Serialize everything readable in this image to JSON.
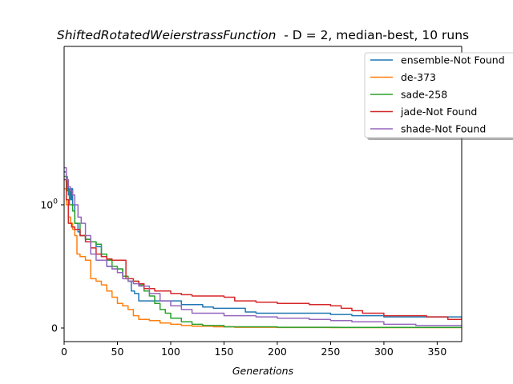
{
  "chart_data": {
    "type": "line",
    "title_function": "ShiftedRotatedWeierstrassFunction",
    "title_rest": "  - D = 2, median-best, 10 runs",
    "xlabel": "Generations",
    "ylabel": "",
    "xlim": [
      0,
      373
    ],
    "ylim": [
      0,
      2.0
    ],
    "yscale": "symlog",
    "grid": false,
    "legend_position": "top-right",
    "x_ticks": [
      0,
      50,
      100,
      150,
      200,
      250,
      300,
      350
    ],
    "x_tick_labels": [
      "0",
      "50",
      "100",
      "150",
      "200",
      "250",
      "300",
      "350"
    ],
    "y_ticks": [
      0,
      1
    ],
    "y_tick_labels": [
      "0",
      "10^0"
    ],
    "series": [
      {
        "name": "ensemble-Not Found",
        "color": "#1f77b4",
        "points": [
          [
            0,
            1.85
          ],
          [
            2,
            1.5
          ],
          [
            4,
            1.2
          ],
          [
            5,
            1.35
          ],
          [
            6,
            1.1
          ],
          [
            7,
            1.35
          ],
          [
            8,
            1.0
          ],
          [
            10,
            0.85
          ],
          [
            13,
            0.78
          ],
          [
            15,
            0.75
          ],
          [
            20,
            0.72
          ],
          [
            25,
            0.7
          ],
          [
            30,
            0.66
          ],
          [
            35,
            0.58
          ],
          [
            40,
            0.5
          ],
          [
            45,
            0.48
          ],
          [
            50,
            0.48
          ],
          [
            55,
            0.42
          ],
          [
            60,
            0.38
          ],
          [
            63,
            0.3
          ],
          [
            66,
            0.28
          ],
          [
            70,
            0.22
          ],
          [
            85,
            0.22
          ],
          [
            100,
            0.22
          ],
          [
            110,
            0.19
          ],
          [
            130,
            0.17
          ],
          [
            140,
            0.16
          ],
          [
            170,
            0.13
          ],
          [
            180,
            0.12
          ],
          [
            200,
            0.12
          ],
          [
            230,
            0.12
          ],
          [
            250,
            0.11
          ],
          [
            270,
            0.1
          ],
          [
            300,
            0.09
          ],
          [
            350,
            0.09
          ],
          [
            373,
            0.08
          ]
        ]
      },
      {
        "name": "de-373",
        "color": "#ff7f0e",
        "points": [
          [
            0,
            1.35
          ],
          [
            2,
            1.0
          ],
          [
            4,
            0.9
          ],
          [
            6,
            0.85
          ],
          [
            8,
            0.8
          ],
          [
            10,
            0.75
          ],
          [
            12,
            0.6
          ],
          [
            15,
            0.58
          ],
          [
            20,
            0.55
          ],
          [
            25,
            0.4
          ],
          [
            30,
            0.38
          ],
          [
            35,
            0.35
          ],
          [
            40,
            0.3
          ],
          [
            45,
            0.25
          ],
          [
            50,
            0.2
          ],
          [
            55,
            0.18
          ],
          [
            60,
            0.15
          ],
          [
            65,
            0.1
          ],
          [
            70,
            0.07
          ],
          [
            80,
            0.06
          ],
          [
            90,
            0.04
          ],
          [
            100,
            0.03
          ],
          [
            110,
            0.02
          ],
          [
            120,
            0.015
          ],
          [
            140,
            0.01
          ],
          [
            160,
            0.006
          ],
          [
            200,
            0.004
          ],
          [
            250,
            0.003
          ],
          [
            373,
            0.003
          ]
        ]
      },
      {
        "name": "sade-258",
        "color": "#2ca02c",
        "points": [
          [
            0,
            1.7
          ],
          [
            3,
            1.3
          ],
          [
            5,
            1.0
          ],
          [
            8,
            0.95
          ],
          [
            10,
            0.85
          ],
          [
            15,
            0.75
          ],
          [
            20,
            0.72
          ],
          [
            25,
            0.7
          ],
          [
            30,
            0.68
          ],
          [
            35,
            0.6
          ],
          [
            40,
            0.55
          ],
          [
            45,
            0.5
          ],
          [
            50,
            0.48
          ],
          [
            55,
            0.42
          ],
          [
            60,
            0.38
          ],
          [
            70,
            0.35
          ],
          [
            75,
            0.3
          ],
          [
            80,
            0.26
          ],
          [
            85,
            0.2
          ],
          [
            90,
            0.15
          ],
          [
            95,
            0.12
          ],
          [
            100,
            0.08
          ],
          [
            110,
            0.05
          ],
          [
            120,
            0.03
          ],
          [
            130,
            0.02
          ],
          [
            150,
            0.01
          ],
          [
            200,
            0.006
          ],
          [
            258,
            0.005
          ],
          [
            373,
            0.005
          ]
        ]
      },
      {
        "name": "jade-Not Found",
        "color": "#d62728",
        "points": [
          [
            0,
            1.6
          ],
          [
            2,
            1.1
          ],
          [
            4,
            0.85
          ],
          [
            7,
            0.82
          ],
          [
            10,
            0.8
          ],
          [
            15,
            0.75
          ],
          [
            20,
            0.7
          ],
          [
            25,
            0.65
          ],
          [
            30,
            0.6
          ],
          [
            35,
            0.58
          ],
          [
            40,
            0.56
          ],
          [
            45,
            0.55
          ],
          [
            50,
            0.55
          ],
          [
            57,
            0.55
          ],
          [
            58,
            0.4
          ],
          [
            65,
            0.38
          ],
          [
            70,
            0.36
          ],
          [
            75,
            0.32
          ],
          [
            85,
            0.3
          ],
          [
            100,
            0.28
          ],
          [
            110,
            0.27
          ],
          [
            120,
            0.26
          ],
          [
            150,
            0.25
          ],
          [
            160,
            0.22
          ],
          [
            180,
            0.21
          ],
          [
            200,
            0.2
          ],
          [
            230,
            0.19
          ],
          [
            250,
            0.18
          ],
          [
            260,
            0.16
          ],
          [
            270,
            0.14
          ],
          [
            280,
            0.12
          ],
          [
            300,
            0.1
          ],
          [
            330,
            0.1
          ],
          [
            340,
            0.09
          ],
          [
            360,
            0.07
          ],
          [
            373,
            0.07
          ]
        ]
      },
      {
        "name": "shade-Not Found",
        "color": "#9467bd",
        "points": [
          [
            0,
            2.0
          ],
          [
            2,
            1.6
          ],
          [
            4,
            1.4
          ],
          [
            6,
            1.3
          ],
          [
            8,
            1.2
          ],
          [
            10,
            1.0
          ],
          [
            13,
            0.9
          ],
          [
            16,
            0.85
          ],
          [
            20,
            0.75
          ],
          [
            25,
            0.6
          ],
          [
            30,
            0.55
          ],
          [
            35,
            0.55
          ],
          [
            40,
            0.5
          ],
          [
            45,
            0.48
          ],
          [
            50,
            0.45
          ],
          [
            55,
            0.4
          ],
          [
            60,
            0.38
          ],
          [
            65,
            0.36
          ],
          [
            70,
            0.34
          ],
          [
            80,
            0.28
          ],
          [
            90,
            0.22
          ],
          [
            100,
            0.18
          ],
          [
            110,
            0.15
          ],
          [
            120,
            0.12
          ],
          [
            150,
            0.1
          ],
          [
            180,
            0.09
          ],
          [
            200,
            0.08
          ],
          [
            230,
            0.07
          ],
          [
            250,
            0.06
          ],
          [
            270,
            0.05
          ],
          [
            300,
            0.03
          ],
          [
            330,
            0.02
          ],
          [
            373,
            0.02
          ]
        ]
      }
    ]
  }
}
